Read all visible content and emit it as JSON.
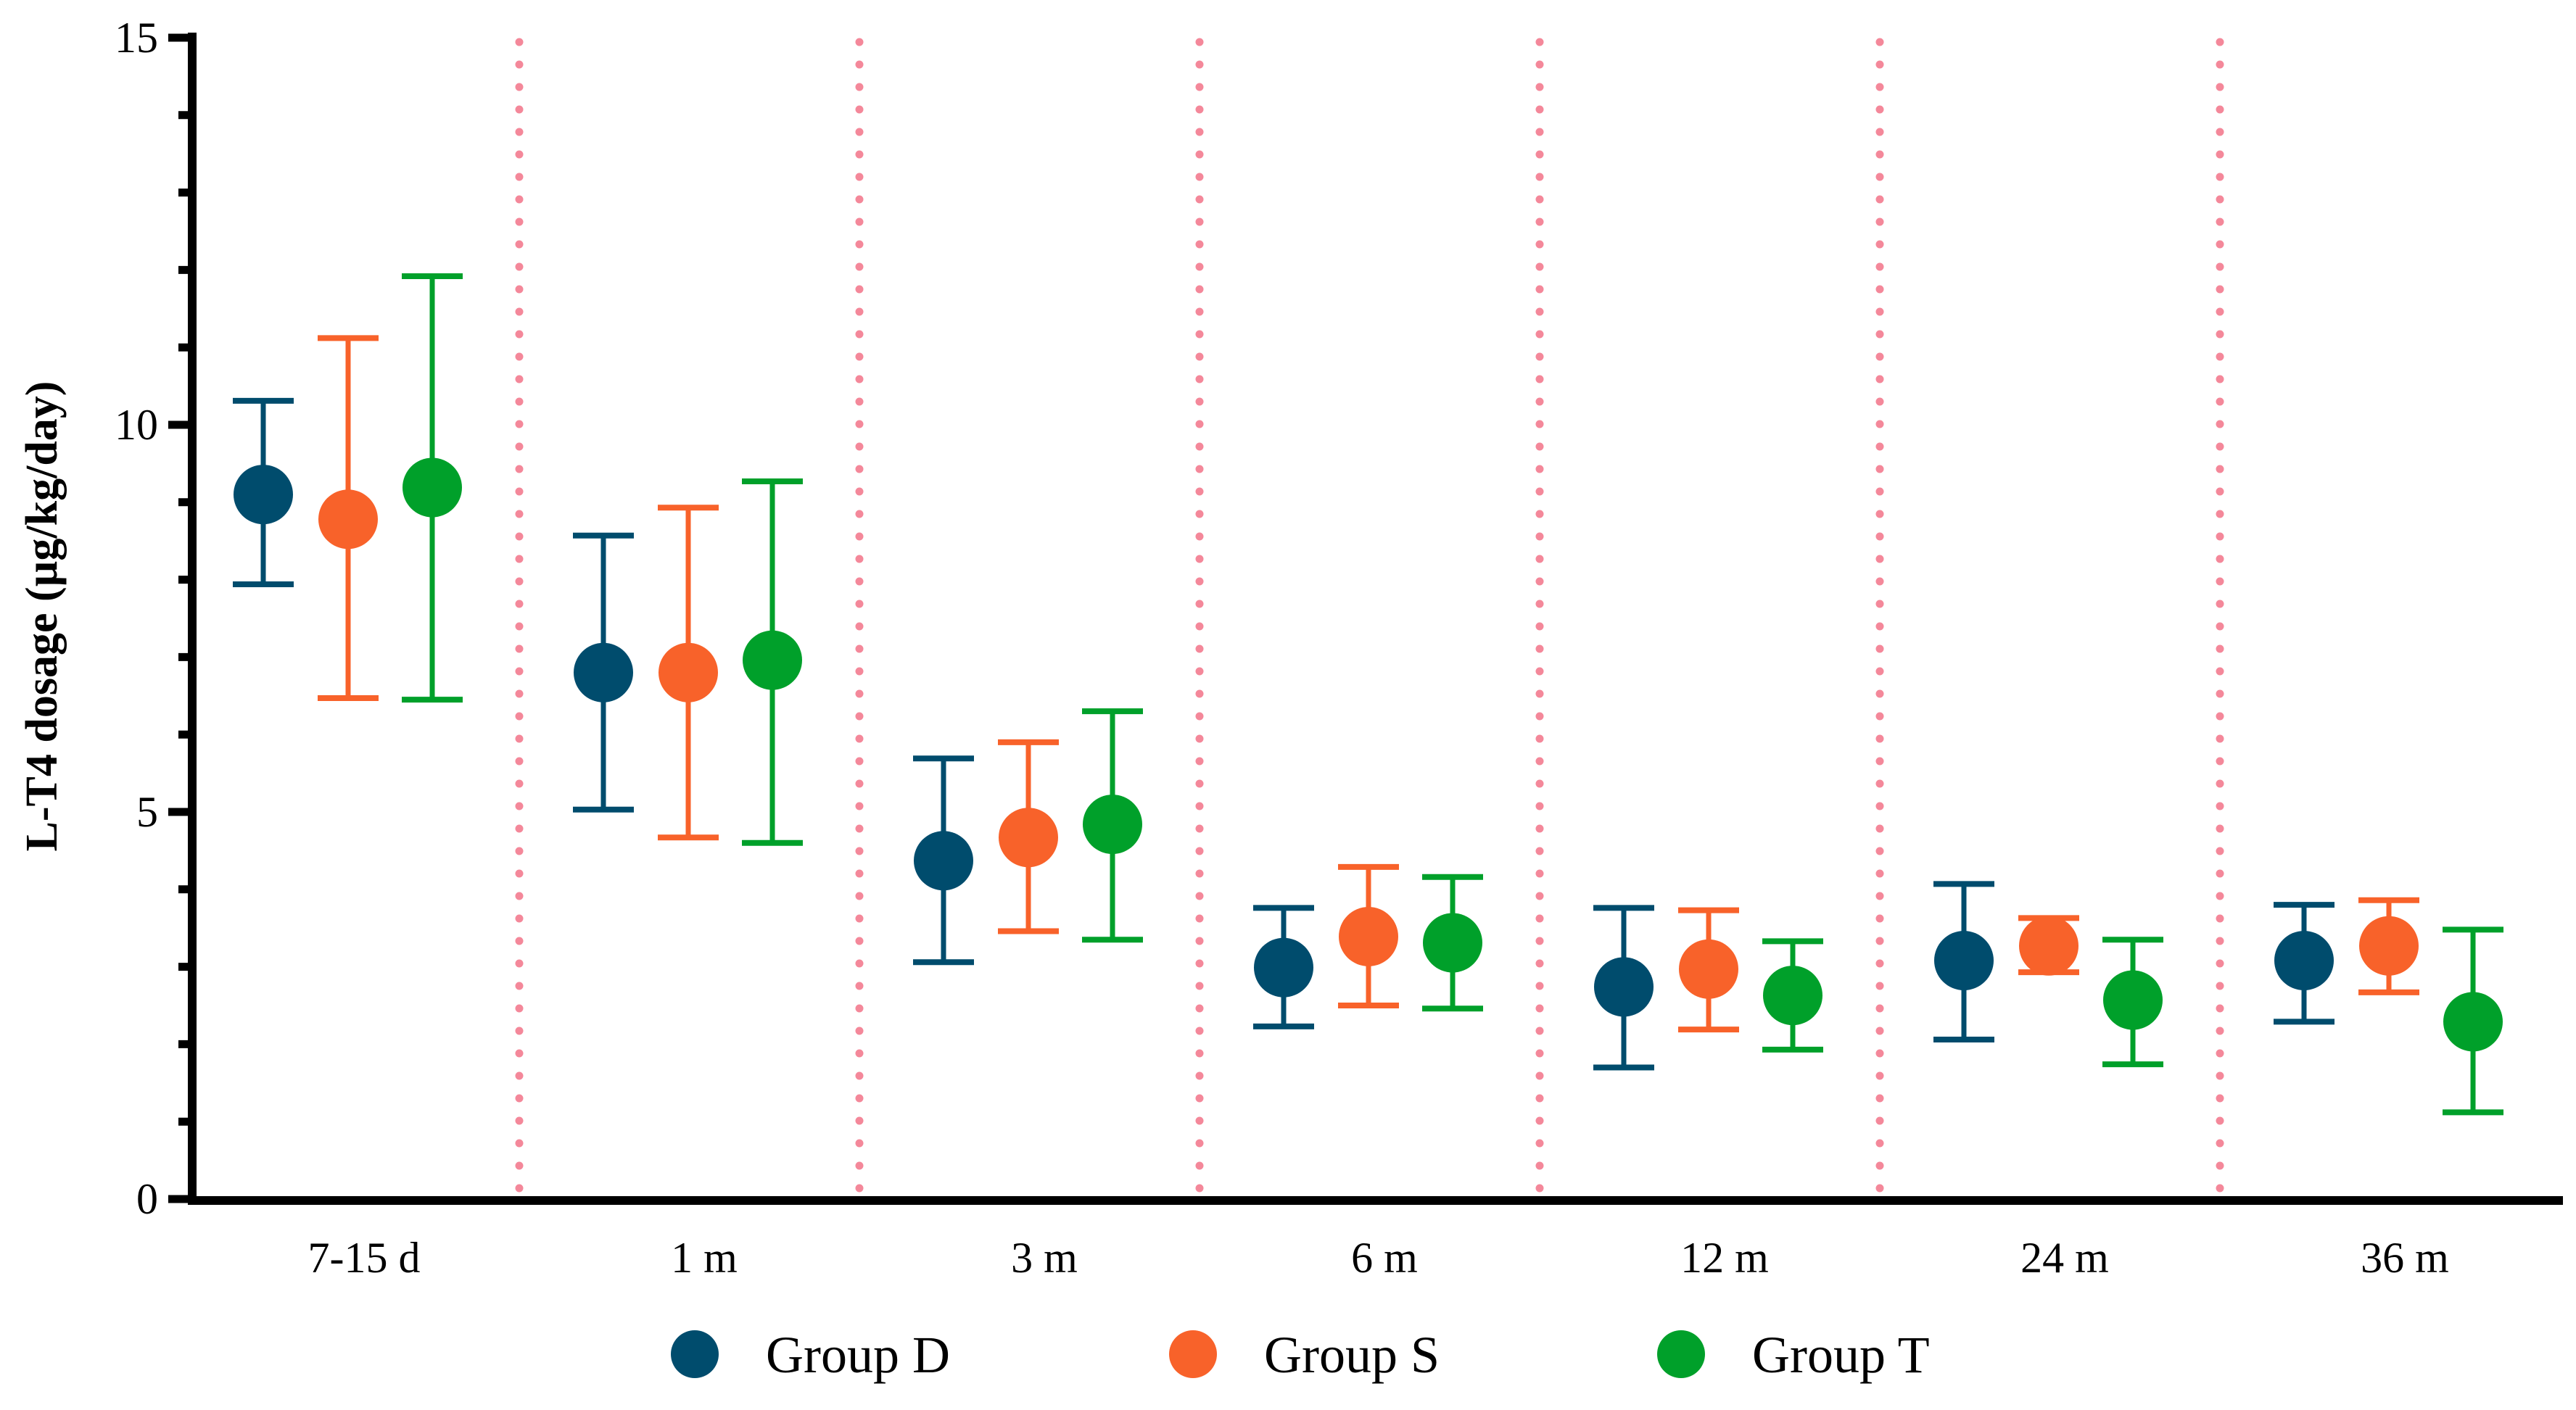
{
  "chart_data": {
    "type": "scatter",
    "title": "",
    "xlabel": "",
    "ylabel": "L-T4 dosage (µg/kg/day)",
    "ylim": [
      0,
      15
    ],
    "yticks": [
      "0",
      "5",
      "10",
      "15"
    ],
    "categories": [
      "7-15 d",
      "1 m",
      "3 m",
      "6 m",
      "12 m",
      "24 m",
      "36 m"
    ],
    "legend_position": "bottom",
    "grid": false,
    "series": [
      {
        "name": "Group D",
        "color": "#004c6d",
        "values": [
          9.1,
          6.8,
          4.37,
          2.99,
          2.74,
          3.08,
          3.08
        ],
        "upper": [
          10.31,
          8.57,
          5.69,
          3.76,
          3.76,
          4.07,
          3.8
        ],
        "lower": [
          7.94,
          5.03,
          3.06,
          2.23,
          1.7,
          2.06,
          2.29
        ]
      },
      {
        "name": "Group S",
        "color": "#f8622a",
        "values": [
          8.78,
          6.8,
          4.67,
          3.39,
          2.97,
          3.27,
          3.27
        ],
        "upper": [
          11.12,
          8.93,
          5.9,
          4.29,
          3.73,
          3.63,
          3.86
        ],
        "lower": [
          6.47,
          4.67,
          3.46,
          2.5,
          2.19,
          2.93,
          2.67
        ]
      },
      {
        "name": "Group T",
        "color": "#00a02a",
        "values": [
          9.19,
          6.96,
          4.84,
          3.31,
          2.63,
          2.57,
          2.29
        ],
        "upper": [
          11.92,
          9.27,
          6.3,
          4.16,
          3.33,
          3.35,
          3.48
        ],
        "lower": [
          6.45,
          4.6,
          3.35,
          2.46,
          1.93,
          1.74,
          1.12
        ]
      }
    ],
    "separator_color": "#f4889a"
  }
}
